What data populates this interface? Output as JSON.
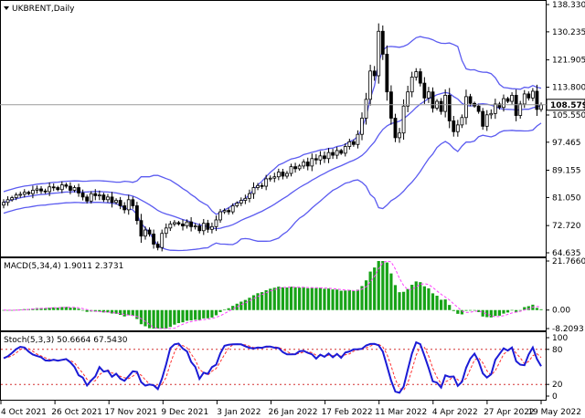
{
  "header": {
    "symbol_label": "UKBRENT,Daily"
  },
  "colors": {
    "bb": "#5b5bf0",
    "candle": "#000000",
    "current_line": "#9a9a9a",
    "macd_hist": "#17a317",
    "macd_signal": "#ff3fff",
    "stoch_main": "#1b1bd6",
    "stoch_signal": "#ff2f2f",
    "level_line": "#d43030",
    "current_box": "#ffffff"
  },
  "price_panel": {
    "current_price_label": "108.579",
    "axis_labels": [
      "138.330",
      "130.235",
      "121.905",
      "113.800",
      "105.550",
      "97.465",
      "89.155",
      "81.050",
      "72.720",
      "64.635"
    ],
    "current_price": 108.579
  },
  "macd_panel": {
    "title": "MACD(5,34,4) 1.9011 2.3731",
    "axis_labels": [
      "21.7660",
      "0.00",
      "-8.2093"
    ]
  },
  "stoch_panel": {
    "title": "Stoch(5,3,3) 50.6664 67.5430",
    "axis_labels": [
      "100",
      "80",
      "20",
      "0"
    ]
  },
  "time_axis": {
    "labels": [
      "4 Oct 2021",
      "26 Oct 2021",
      "17 Nov 2021",
      "9 Dec 2021",
      "3 Jan 2022",
      "26 Jan 2022",
      "17 Feb 2022",
      "11 Mar 2022",
      "4 Apr 2022",
      "27 Apr 2022",
      "19 May 2022"
    ]
  },
  "chart_data": {
    "type": "candlestick",
    "title": "UKBRENT,Daily",
    "price_range": [
      64.635,
      138.33
    ],
    "price_close_series": [
      79.6,
      80.4,
      81.0,
      81.8,
      82.0,
      82.6,
      82.2,
      83.2,
      83.6,
      83.0,
      82.8,
      84.2,
      84.0,
      83.4,
      84.8,
      84.4,
      83.2,
      84.0,
      82.4,
      81.2,
      80.0,
      82.2,
      81.6,
      81.8,
      80.4,
      81.2,
      79.6,
      80.2,
      78.6,
      77.4,
      80.4,
      78.6,
      74.2,
      69.6,
      71.4,
      70.2,
      67.2,
      66.2,
      70.4,
      72.0,
      73.2,
      73.6,
      73.2,
      72.6,
      73.8,
      72.4,
      72.6,
      71.2,
      73.4,
      71.6,
      72.4,
      74.4,
      76.8,
      77.2,
      76.8,
      78.6,
      79.4,
      80.2,
      80.8,
      82.2,
      84.0,
      84.6,
      84.4,
      86.6,
      86.8,
      87.2,
      88.6,
      87.4,
      88.2,
      90.2,
      89.6,
      90.4,
      91.6,
      90.4,
      92.6,
      92.2,
      93.4,
      92.6,
      94.4,
      93.6,
      95.0,
      94.2,
      96.2,
      97.6,
      96.8,
      99.8,
      104.6,
      110.2,
      118.6,
      117.2,
      130.4,
      123.6,
      112.4,
      104.6,
      98.8,
      100.2,
      108.2,
      112.4,
      116.8,
      118.4,
      115.0,
      110.6,
      112.4,
      107.6,
      109.6,
      106.6,
      111.4,
      103.8,
      100.6,
      102.6,
      104.8,
      111.0,
      109.0,
      108.2,
      106.6,
      102.2,
      105.6,
      106.0,
      108.8,
      107.8,
      110.4,
      109.6,
      111.4,
      105.4,
      108.8,
      111.8,
      110.6,
      112.6,
      107.2,
      108.579
    ],
    "bollinger_upper_start": 84.0,
    "bollinger_lower_start": 74.0,
    "macd_histogram_range": [
      -8.2093,
      21.766
    ],
    "macd_main": 1.9011,
    "macd_signal": 2.3731,
    "stochastic_levels": [
      20,
      80
    ],
    "stoch_main": 50.6664,
    "stoch_signal": 67.543,
    "ylabel": ""
  }
}
